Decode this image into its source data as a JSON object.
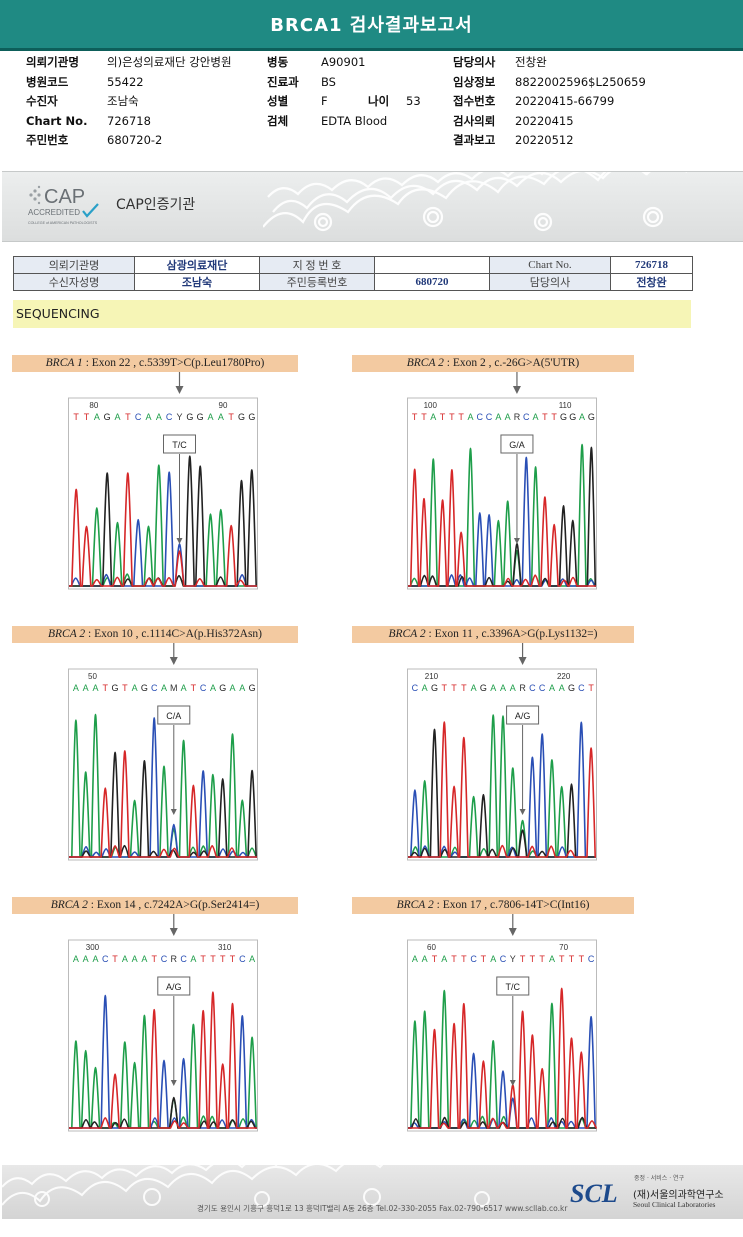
{
  "report": {
    "title": "BRCA1 검사결과보고서"
  },
  "info": {
    "col1": [
      {
        "label": "의뢰기관명",
        "value": "의)은성의료재단 강안병원"
      },
      {
        "label": "병원코드",
        "value": "55422"
      },
      {
        "label": "수진자",
        "value": "조남숙"
      },
      {
        "label": "Chart No.",
        "value": "726718"
      },
      {
        "label": "주민번호",
        "value": "680720-2"
      }
    ],
    "col2": [
      {
        "label": "병동",
        "value": "A90901"
      },
      {
        "label": "진료과",
        "value": "BS"
      },
      {
        "label": "성별",
        "value": "F"
      },
      {
        "label": "검체",
        "value": "EDTA Blood"
      }
    ],
    "age": {
      "label": "나이",
      "value": "53"
    },
    "col3": [
      {
        "label": "담당의사",
        "value": "전창완"
      },
      {
        "label": "임상정보",
        "value": "8822002596$L250659"
      },
      {
        "label": "접수번호",
        "value": "20220415-66799"
      },
      {
        "label": "검사의뢰",
        "value": "20220415"
      },
      {
        "label": "결과보고",
        "value": "20220512"
      }
    ]
  },
  "cap": {
    "logo_text": "CAP",
    "logo_sub": "ACCREDITED",
    "logo_small": "COLLEGE of AMERICAN PATHOLOGISTS",
    "label": "CAP인증기관"
  },
  "patient_table": {
    "r1": [
      "의뢰기관명",
      "삼광의료재단",
      "지 정 번 호",
      "",
      "Chart No.",
      "726718"
    ],
    "r2": [
      "수신자성명",
      "조남숙",
      "주민등록번호",
      "680720",
      "담당의사",
      "전창완"
    ]
  },
  "section": {
    "title": "SEQUENCING"
  },
  "variants": [
    {
      "gene": "BRCA 1",
      "desc": " : Exon 22 , c.5339T>C(p.Leu1780Pro)",
      "pos1": "80",
      "pos2": "90",
      "seq": "TTAGATCAACYGGAATGG",
      "call": "T/C"
    },
    {
      "gene": "BRCA 2",
      "desc": " : Exon 2 , c.-26G>A(5'UTR)",
      "pos1": "100",
      "pos2": "110",
      "seq": "TTATTTACCAARCATTGGAG",
      "call": "G/A"
    },
    {
      "gene": "BRCA 2",
      "desc": " : Exon 10 , c.1114C>A(p.His372Asn)",
      "pos1": "50",
      "pos2": "",
      "seq": "AAATGTAGCAMATCAGAAG",
      "call": "C/A"
    },
    {
      "gene": "BRCA 2",
      "desc": " : Exon 11 , c.3396A>G(p.Lys1132=)",
      "pos1": "210",
      "pos2": "220",
      "seq": "CAGTTTAGAAARCCAAGCT",
      "call": "A/G"
    },
    {
      "gene": "BRCA 2",
      "desc": " : Exon 14 , c.7242A>G(p.Ser2414=)",
      "pos1": "300",
      "pos2": "310",
      "seq": "AAACTAAATCRCATTTTCA",
      "call": "A/G"
    },
    {
      "gene": "BRCA 2",
      "desc": " : Exon 17 , c.7806-14T>C(Int16)",
      "pos1": "60",
      "pos2": "70",
      "seq": "AATATTCTACYTTTATTTC",
      "call": "T/C"
    }
  ],
  "footer": {
    "address": "경기도 용인시 기흥구 흥덕1로 13 흥덕IT밸리 A동 26층  Tel.02-330-2055  Fax.02-790-6517  www.scllab.co.kr",
    "logo": "SCL",
    "slogan": "중정 · 서비스 · 연구",
    "name_ko": "(재)서울의과학연구소",
    "name_en": "Seoul Clinical Laboratories"
  },
  "colors": {
    "title_bar": "#1f8a83",
    "A": "#1e9e4a",
    "C": "#2a4fb5",
    "G": "#222222",
    "T": "#d62728"
  }
}
